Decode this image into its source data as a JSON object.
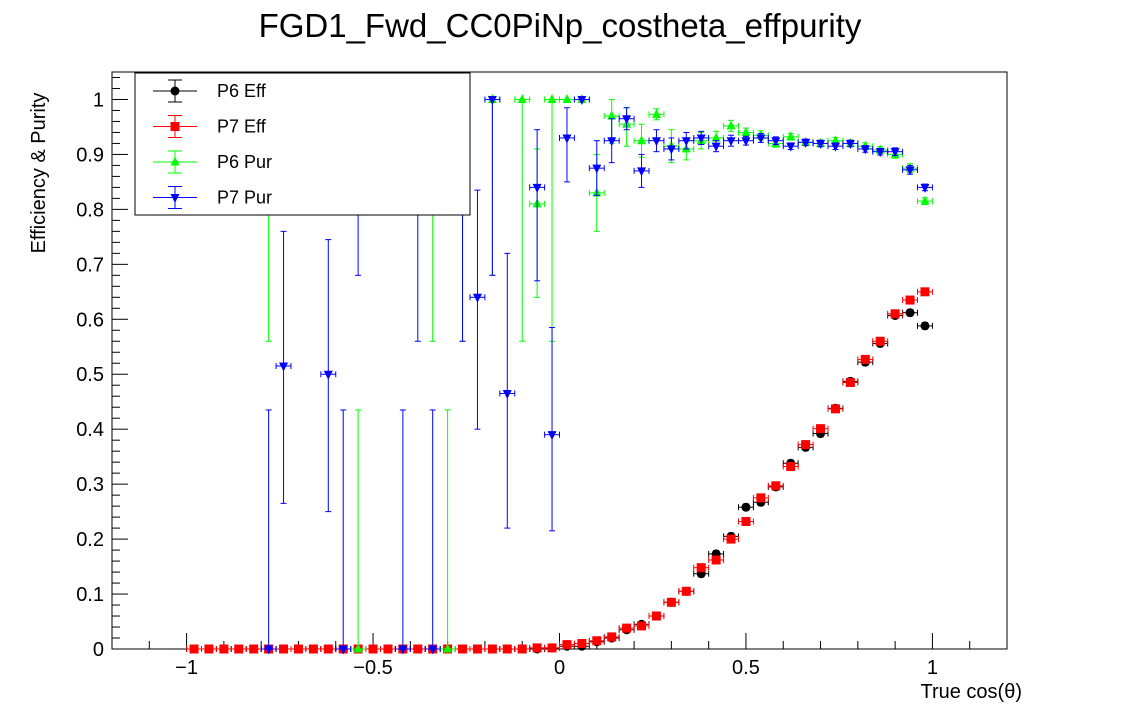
{
  "chart_data": {
    "type": "scatter",
    "title": "FGD1_Fwd_CC0PiNp_costheta_effpurity",
    "xlabel": "True cos(θ)",
    "ylabel": "Efficiency & Purity",
    "xlim": [
      -1.2,
      1.2
    ],
    "ylim": [
      0,
      1.05
    ],
    "x_bin_width": 0.04,
    "x_ticks": [
      -1,
      -0.5,
      0,
      0.5,
      1
    ],
    "x_tick_labels": [
      "−1",
      "−0.5",
      "0",
      "0.5",
      "1"
    ],
    "y_ticks": [
      0,
      0.1,
      0.2,
      0.3,
      0.4,
      0.5,
      0.6,
      0.7,
      0.8,
      0.9,
      1
    ],
    "y_tick_labels": [
      "0",
      "0.1",
      "0.2",
      "0.3",
      "0.4",
      "0.5",
      "0.6",
      "0.7",
      "0.8",
      "0.9",
      "1"
    ],
    "grid": false,
    "legend_position": "top-left",
    "series": [
      {
        "name": "P6 Eff",
        "color": "#000000",
        "marker": "circle",
        "x": [
          -0.98,
          -0.94,
          -0.9,
          -0.86,
          -0.82,
          -0.78,
          -0.74,
          -0.7,
          -0.66,
          -0.62,
          -0.58,
          -0.54,
          -0.5,
          -0.46,
          -0.42,
          -0.38,
          -0.34,
          -0.3,
          -0.26,
          -0.22,
          -0.18,
          -0.14,
          -0.1,
          -0.06,
          -0.02,
          0.02,
          0.06,
          0.1,
          0.14,
          0.18,
          0.22,
          0.26,
          0.3,
          0.34,
          0.38,
          0.42,
          0.46,
          0.5,
          0.54,
          0.58,
          0.62,
          0.66,
          0.7,
          0.74,
          0.78,
          0.82,
          0.86,
          0.9,
          0.94,
          0.98
        ],
        "y": [
          0,
          0,
          0,
          0,
          0,
          0,
          0,
          0,
          0,
          0,
          0,
          0,
          0,
          0,
          0,
          0,
          0,
          0,
          0,
          0,
          0,
          0,
          0,
          0,
          0.002,
          0.005,
          0.005,
          0.013,
          0.02,
          0.035,
          0.045,
          0.06,
          0.085,
          0.105,
          0.137,
          0.173,
          0.205,
          0.258,
          0.267,
          0.295,
          0.338,
          0.367,
          0.392,
          0.438,
          0.487,
          0.522,
          0.556,
          0.607,
          0.612,
          0.588
        ],
        "yerr": [
          0,
          0,
          0,
          0,
          0,
          0,
          0,
          0,
          0,
          0,
          0,
          0,
          0,
          0,
          0,
          0,
          0,
          0,
          0,
          0,
          0,
          0,
          0,
          0,
          0.002,
          0.002,
          0.002,
          0.003,
          0.003,
          0.004,
          0.004,
          0.005,
          0.005,
          0.005,
          0.006,
          0.006,
          0.006,
          0.006,
          0.006,
          0.006,
          0.006,
          0.006,
          0.006,
          0.006,
          0.006,
          0.006,
          0.006,
          0.006,
          0.006,
          0.006
        ]
      },
      {
        "name": "P7 Eff",
        "color": "#ff0000",
        "marker": "square",
        "x": [
          -0.98,
          -0.94,
          -0.9,
          -0.86,
          -0.82,
          -0.78,
          -0.74,
          -0.7,
          -0.66,
          -0.62,
          -0.58,
          -0.54,
          -0.5,
          -0.46,
          -0.42,
          -0.38,
          -0.34,
          -0.3,
          -0.26,
          -0.22,
          -0.18,
          -0.14,
          -0.1,
          -0.06,
          -0.02,
          0.02,
          0.06,
          0.1,
          0.14,
          0.18,
          0.22,
          0.26,
          0.3,
          0.34,
          0.38,
          0.42,
          0.46,
          0.5,
          0.54,
          0.58,
          0.62,
          0.66,
          0.7,
          0.74,
          0.78,
          0.82,
          0.86,
          0.9,
          0.94,
          0.98
        ],
        "y": [
          0,
          0,
          0,
          0,
          0,
          0,
          0,
          0,
          0,
          0,
          0,
          0,
          0,
          0,
          0,
          0,
          0,
          0,
          0,
          0,
          0,
          0,
          0,
          0.002,
          0.002,
          0.008,
          0.01,
          0.015,
          0.022,
          0.038,
          0.042,
          0.06,
          0.085,
          0.105,
          0.148,
          0.162,
          0.2,
          0.232,
          0.275,
          0.297,
          0.332,
          0.372,
          0.401,
          0.437,
          0.485,
          0.527,
          0.56,
          0.61,
          0.635,
          0.65
        ],
        "yerr": [
          0,
          0,
          0,
          0,
          0,
          0,
          0,
          0,
          0,
          0,
          0,
          0,
          0,
          0,
          0,
          0,
          0,
          0,
          0,
          0,
          0,
          0,
          0,
          0.002,
          0.002,
          0.002,
          0.002,
          0.003,
          0.003,
          0.004,
          0.004,
          0.005,
          0.005,
          0.005,
          0.006,
          0.006,
          0.006,
          0.006,
          0.006,
          0.006,
          0.006,
          0.006,
          0.006,
          0.006,
          0.006,
          0.006,
          0.006,
          0.006,
          0.006,
          0.006
        ]
      },
      {
        "name": "P6 Pur",
        "color": "#00ff00",
        "marker": "triangle-up",
        "x": [
          -0.78,
          -0.54,
          -0.34,
          -0.3,
          -0.26,
          -0.18,
          -0.1,
          -0.06,
          -0.02,
          0.02,
          0.06,
          0.1,
          0.14,
          0.18,
          0.22,
          0.26,
          0.3,
          0.34,
          0.38,
          0.42,
          0.46,
          0.5,
          0.54,
          0.58,
          0.62,
          0.66,
          0.7,
          0.74,
          0.78,
          0.82,
          0.86,
          0.9,
          0.94,
          0.98
        ],
        "y": [
          0.82,
          0,
          0.82,
          0,
          0.82,
          1.0,
          1.0,
          0.81,
          1.0,
          1.0,
          1.0,
          0.83,
          0.97,
          0.955,
          0.925,
          0.973,
          0.915,
          0.91,
          0.925,
          0.93,
          0.952,
          0.94,
          0.935,
          0.92,
          0.932,
          0.922,
          0.92,
          0.925,
          0.92,
          0.915,
          0.908,
          0.9,
          0.875,
          0.815
        ],
        "yerr_low": [
          0.26,
          0,
          0.26,
          0,
          0.26,
          0.32,
          0.44,
          0.17,
          0.44,
          0,
          0,
          0.07,
          0.05,
          0.04,
          0.03,
          0.01,
          0.03,
          0.02,
          0.015,
          0.012,
          0.01,
          0.008,
          0.008,
          0.007,
          0.006,
          0.006,
          0.006,
          0.006,
          0.006,
          0.006,
          0.006,
          0.007,
          0.008,
          0.006
        ],
        "yerr_high": [
          0,
          0.435,
          0,
          0.435,
          0,
          0,
          0,
          0.1,
          0,
          0,
          0,
          0.07,
          0.03,
          0.03,
          0.03,
          0.01,
          0.03,
          0.02,
          0.015,
          0.012,
          0.01,
          0.008,
          0.008,
          0.007,
          0.006,
          0.006,
          0.006,
          0.006,
          0.006,
          0.006,
          0.006,
          0.007,
          0.008,
          0.006
        ]
      },
      {
        "name": "P7 Pur",
        "color": "#0000ff",
        "marker": "triangle-down",
        "x": [
          -0.78,
          -0.74,
          -0.62,
          -0.58,
          -0.54,
          -0.42,
          -0.38,
          -0.34,
          -0.26,
          -0.22,
          -0.18,
          -0.14,
          -0.06,
          -0.02,
          0.02,
          0.06,
          0.1,
          0.14,
          0.18,
          0.22,
          0.26,
          0.3,
          0.34,
          0.38,
          0.42,
          0.46,
          0.5,
          0.54,
          0.58,
          0.62,
          0.66,
          0.7,
          0.74,
          0.78,
          0.82,
          0.86,
          0.9,
          0.94,
          0.98
        ],
        "y": [
          0,
          0.515,
          0.5,
          0,
          0.82,
          0,
          0.82,
          0,
          0.82,
          0.64,
          1.0,
          0.465,
          0.84,
          0.39,
          0.93,
          1.0,
          0.875,
          0.925,
          0.965,
          0.87,
          0.925,
          0.91,
          0.925,
          0.93,
          0.915,
          0.925,
          0.925,
          0.93,
          0.925,
          0.915,
          0.922,
          0.92,
          0.915,
          0.92,
          0.91,
          0.905,
          0.905,
          0.872,
          0.84
        ],
        "yerr_low": [
          0,
          0.25,
          0.25,
          0,
          0.14,
          0,
          0.26,
          0,
          0.26,
          0.24,
          0.32,
          0.245,
          0.17,
          0.175,
          0.08,
          0,
          0.05,
          0.04,
          0.02,
          0.03,
          0.02,
          0.02,
          0.015,
          0.012,
          0.01,
          0.01,
          0.008,
          0.008,
          0.007,
          0.006,
          0.006,
          0.006,
          0.006,
          0.006,
          0.006,
          0.006,
          0.007,
          0.008,
          0.006
        ],
        "yerr_high": [
          0.435,
          0.245,
          0.245,
          0.435,
          0,
          0.435,
          0,
          0.435,
          0,
          0.195,
          0,
          0.255,
          0.105,
          0.195,
          0.055,
          0,
          0.05,
          0.04,
          0.02,
          0.03,
          0.02,
          0.02,
          0.015,
          0.012,
          0.01,
          0.01,
          0.008,
          0.008,
          0.007,
          0.006,
          0.006,
          0.006,
          0.006,
          0.006,
          0.006,
          0.006,
          0.007,
          0.008,
          0.006
        ]
      }
    ]
  }
}
